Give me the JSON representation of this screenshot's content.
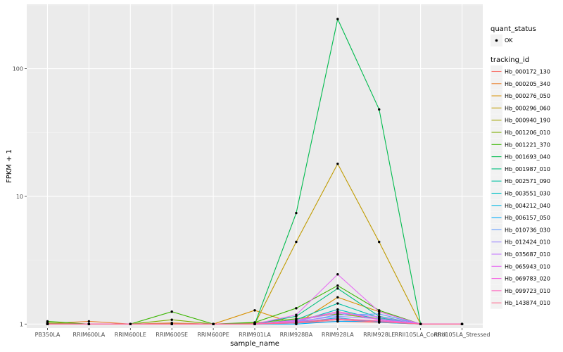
{
  "chart_data": {
    "type": "line",
    "xlabel": "sample_name",
    "ylabel": "FPKM + 1",
    "y_scale": "log10",
    "ylim": [
      0.93,
      320
    ],
    "y_ticks": [
      {
        "value": 1,
        "label": "1"
      },
      {
        "value": 10,
        "label": "10"
      },
      {
        "value": 100,
        "label": "100"
      }
    ],
    "categories": [
      "PB350LA",
      "RRIM600LA",
      "RRIM600LE",
      "RRIM600SE",
      "RRIM600PE",
      "RRIM901LA",
      "RRIM928BA",
      "RRIM928LA",
      "RRIM928LE",
      "RRII105LA_Control",
      "RRII105LA_Stressed"
    ],
    "category_labels": [
      "PB350LA",
      "RRIM600LA",
      "RRIM600LE",
      "RRIM600SE",
      "RRIM600PE",
      "RRIM901LA",
      "RRIM928BA",
      "RRIM928LA",
      "RRIM928LE",
      "RRII105LA_Control",
      "RRII105LA_Stressed"
    ],
    "legend": {
      "quant_status_title": "quant_status",
      "quant_status_entries": [
        "OK"
      ],
      "tracking_title": "tracking_id",
      "position": "right"
    },
    "grid": true,
    "series": [
      {
        "name": "Hb_000172_130",
        "color": "#F8766D",
        "values": [
          1.02,
          1.0,
          1.0,
          1.0,
          1.0,
          1.0,
          1.02,
          1.05,
          1.03,
          1.0,
          1.0
        ]
      },
      {
        "name": "Hb_000205_340",
        "color": "#EA8331",
        "values": [
          1.01,
          1.05,
          1.0,
          1.02,
          1.0,
          1.01,
          1.05,
          1.25,
          1.1,
          1.0,
          1.0
        ]
      },
      {
        "name": "Hb_000276_050",
        "color": "#D89000",
        "values": [
          1.0,
          1.0,
          1.0,
          1.0,
          1.0,
          1.28,
          1.0,
          1.62,
          1.25,
          1.0,
          1.0
        ]
      },
      {
        "name": "Hb_000296_060",
        "color": "#C09B00",
        "values": [
          1.0,
          1.0,
          1.0,
          1.01,
          1.0,
          1.0,
          4.4,
          18.0,
          4.4,
          1.0,
          1.0
        ]
      },
      {
        "name": "Hb_000940_190",
        "color": "#A3A500",
        "values": [
          1.0,
          1.0,
          1.0,
          1.0,
          1.0,
          1.0,
          1.03,
          1.08,
          1.05,
          1.0,
          1.0
        ]
      },
      {
        "name": "Hb_001206_010",
        "color": "#7CAE00",
        "values": [
          1.02,
          1.0,
          1.0,
          1.08,
          1.0,
          1.02,
          1.1,
          1.2,
          1.1,
          1.0,
          1.0
        ]
      },
      {
        "name": "Hb_001221_370",
        "color": "#39B600",
        "values": [
          1.05,
          1.0,
          1.0,
          1.25,
          1.0,
          1.03,
          1.33,
          2.0,
          1.28,
          1.0,
          1.0
        ]
      },
      {
        "name": "Hb_001693_040",
        "color": "#00BB4E",
        "values": [
          1.0,
          1.0,
          1.0,
          1.0,
          1.0,
          1.0,
          7.4,
          245,
          48,
          1.0,
          1.0
        ]
      },
      {
        "name": "Hb_001987_010",
        "color": "#00BF7D",
        "values": [
          1.0,
          1.0,
          1.0,
          1.0,
          1.0,
          1.0,
          1.15,
          1.9,
          1.15,
          1.0,
          1.0
        ]
      },
      {
        "name": "Hb_002571_090",
        "color": "#00C1A3",
        "values": [
          1.0,
          1.0,
          1.0,
          1.0,
          1.0,
          1.0,
          1.08,
          1.45,
          1.12,
          1.0,
          1.0
        ]
      },
      {
        "name": "Hb_003551_030",
        "color": "#00BFC4",
        "values": [
          1.0,
          1.0,
          1.0,
          1.0,
          1.0,
          1.0,
          1.04,
          1.3,
          1.08,
          1.0,
          1.0
        ]
      },
      {
        "name": "Hb_004212_040",
        "color": "#00B8E5",
        "values": [
          1.0,
          1.0,
          1.0,
          1.0,
          1.0,
          1.0,
          1.02,
          1.12,
          1.03,
          1.0,
          1.0
        ]
      },
      {
        "name": "Hb_006157_050",
        "color": "#00ACFC",
        "values": [
          1.0,
          1.0,
          1.0,
          1.0,
          1.0,
          1.0,
          1.0,
          1.05,
          1.05,
          1.0,
          1.0
        ]
      },
      {
        "name": "Hb_010736_030",
        "color": "#619CFF",
        "values": [
          1.0,
          1.0,
          1.0,
          1.0,
          1.0,
          1.0,
          1.03,
          1.18,
          1.2,
          1.0,
          1.0
        ]
      },
      {
        "name": "Hb_012424_010",
        "color": "#9F8CFF",
        "values": [
          1.0,
          1.0,
          1.0,
          1.0,
          1.0,
          1.0,
          1.05,
          1.15,
          1.1,
          1.0,
          1.0
        ]
      },
      {
        "name": "Hb_035687_010",
        "color": "#C77CFF",
        "values": [
          1.0,
          1.0,
          1.0,
          1.0,
          1.0,
          1.0,
          1.06,
          1.22,
          1.14,
          1.0,
          1.0
        ]
      },
      {
        "name": "Hb_065943_010",
        "color": "#E76BF3",
        "values": [
          1.0,
          1.0,
          1.0,
          1.0,
          1.0,
          1.0,
          1.18,
          2.45,
          1.25,
          1.0,
          1.0
        ]
      },
      {
        "name": "Hb_069783_020",
        "color": "#F564E3",
        "values": [
          1.0,
          1.0,
          1.0,
          1.0,
          1.0,
          1.0,
          1.07,
          1.25,
          1.08,
          1.0,
          1.0
        ]
      },
      {
        "name": "Hb_099723_010",
        "color": "#FF62BC",
        "values": [
          1.0,
          1.0,
          1.0,
          1.0,
          1.0,
          1.0,
          1.04,
          1.1,
          1.06,
          1.0,
          1.0
        ]
      },
      {
        "name": "Hb_143874_010",
        "color": "#FF6C91",
        "values": [
          1.0,
          1.0,
          1.0,
          1.0,
          1.0,
          1.0,
          1.02,
          1.08,
          1.04,
          1.0,
          1.0
        ]
      }
    ]
  }
}
